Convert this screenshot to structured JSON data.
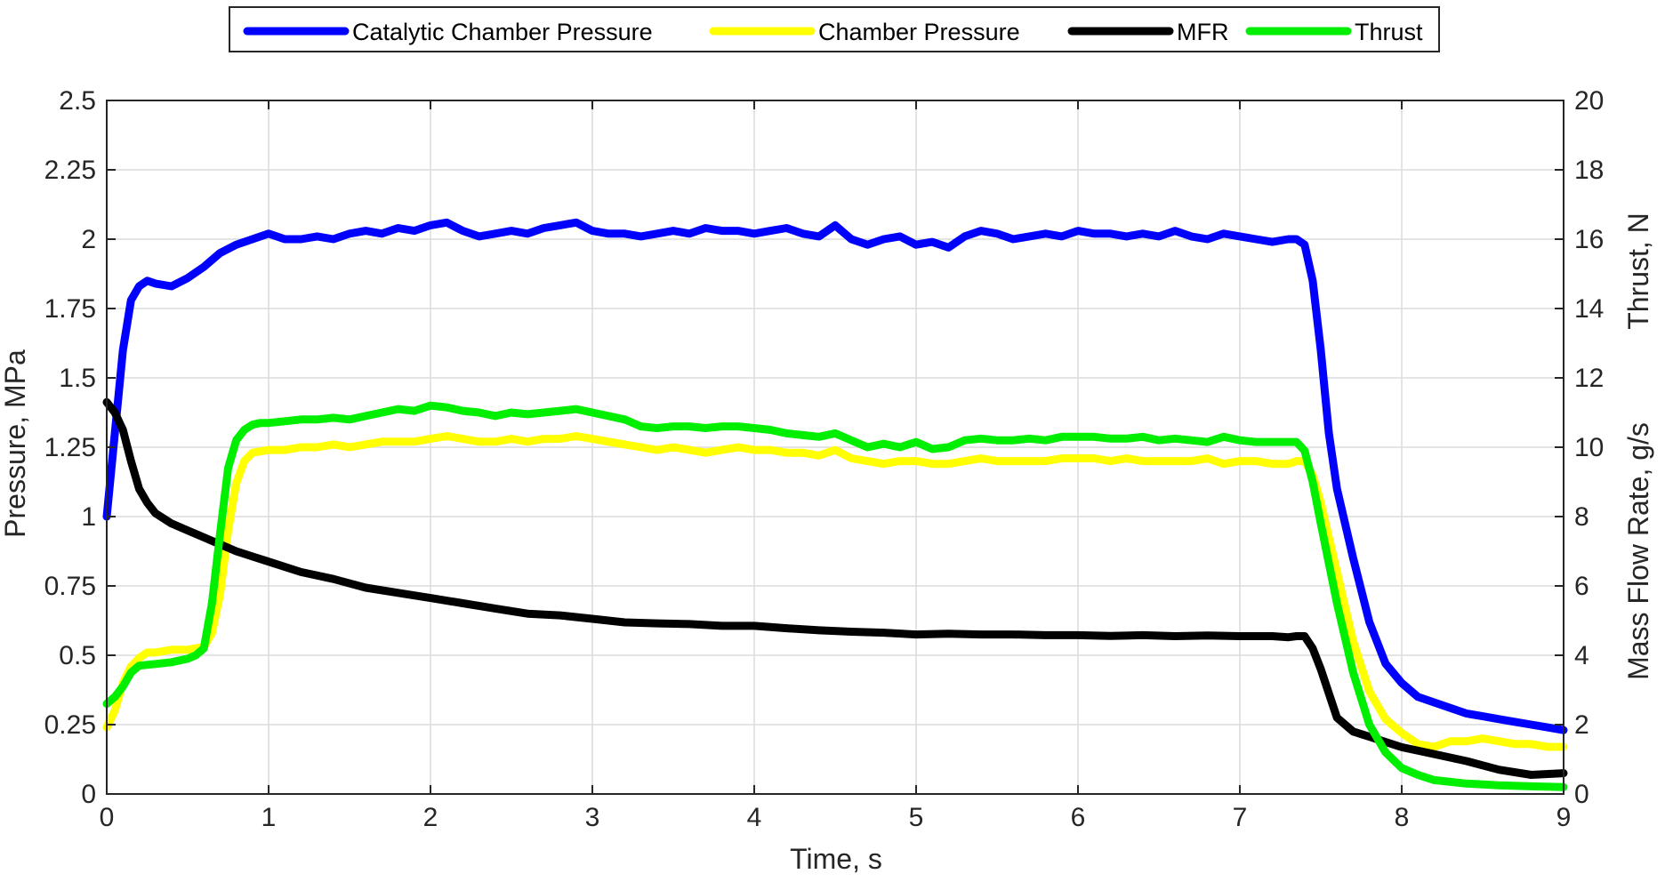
{
  "chart_data": {
    "type": "line",
    "title": "",
    "xlabel": "Time, s",
    "ylabel_left": "Pressure, MPa",
    "ylabel_right_top": "Thrust, N",
    "ylabel_right_bottom": "Mass Flow Rate, g/s",
    "xlim": [
      0,
      9
    ],
    "ylim_left": [
      0,
      2.5
    ],
    "ylim_right": [
      0,
      20
    ],
    "grid": true,
    "legend_position": "top",
    "x_ticks": [
      0,
      1,
      2,
      3,
      4,
      5,
      6,
      7,
      8,
      9
    ],
    "x_tick_labels": [
      "0",
      "1",
      "2",
      "3",
      "4",
      "5",
      "6",
      "7",
      "8",
      "9"
    ],
    "y_left_ticks": [
      0,
      0.25,
      0.5,
      0.75,
      1,
      1.25,
      1.5,
      1.75,
      2,
      2.25,
      2.5
    ],
    "y_left_tick_labels": [
      "0",
      "0.25",
      "0.5",
      "0.75",
      "1",
      "1.25",
      "1.5",
      "1.75",
      "2",
      "2.25",
      "2.5"
    ],
    "y_right_ticks": [
      0,
      2,
      4,
      6,
      8,
      10,
      12,
      14,
      16,
      18,
      20
    ],
    "y_right_tick_labels": [
      "0",
      "2",
      "4",
      "6",
      "8",
      "10",
      "12",
      "14",
      "16",
      "18",
      "20"
    ],
    "series": [
      {
        "name": "Catalytic Chamber Pressure",
        "color": "#0000ff",
        "axis": "left",
        "x": [
          0,
          0.05,
          0.1,
          0.15,
          0.2,
          0.25,
          0.3,
          0.4,
          0.5,
          0.6,
          0.7,
          0.8,
          0.9,
          1.0,
          1.1,
          1.2,
          1.3,
          1.4,
          1.5,
          1.6,
          1.7,
          1.8,
          1.9,
          2.0,
          2.1,
          2.2,
          2.3,
          2.4,
          2.5,
          2.6,
          2.7,
          2.8,
          2.9,
          3.0,
          3.1,
          3.2,
          3.3,
          3.4,
          3.5,
          3.6,
          3.7,
          3.8,
          3.9,
          4.0,
          4.1,
          4.2,
          4.3,
          4.4,
          4.5,
          4.6,
          4.7,
          4.8,
          4.9,
          5.0,
          5.1,
          5.2,
          5.3,
          5.4,
          5.5,
          5.6,
          5.7,
          5.8,
          5.9,
          6.0,
          6.1,
          6.2,
          6.3,
          6.4,
          6.5,
          6.6,
          6.7,
          6.8,
          6.9,
          7.0,
          7.1,
          7.2,
          7.3,
          7.35,
          7.4,
          7.45,
          7.5,
          7.55,
          7.6,
          7.7,
          7.8,
          7.9,
          8.0,
          8.1,
          8.2,
          8.3,
          8.4,
          8.5,
          8.6,
          8.7,
          8.8,
          8.9,
          9.0
        ],
        "values": [
          1.0,
          1.3,
          1.6,
          1.78,
          1.83,
          1.85,
          1.84,
          1.83,
          1.86,
          1.9,
          1.95,
          1.98,
          2.0,
          2.02,
          2.0,
          2.0,
          2.01,
          2.0,
          2.02,
          2.03,
          2.02,
          2.04,
          2.03,
          2.05,
          2.06,
          2.03,
          2.01,
          2.02,
          2.03,
          2.02,
          2.04,
          2.05,
          2.06,
          2.03,
          2.02,
          2.02,
          2.01,
          2.02,
          2.03,
          2.02,
          2.04,
          2.03,
          2.03,
          2.02,
          2.03,
          2.04,
          2.02,
          2.01,
          2.05,
          2.0,
          1.98,
          2.0,
          2.01,
          1.98,
          1.99,
          1.97,
          2.01,
          2.03,
          2.02,
          2.0,
          2.01,
          2.02,
          2.01,
          2.03,
          2.02,
          2.02,
          2.01,
          2.02,
          2.01,
          2.03,
          2.01,
          2.0,
          2.02,
          2.01,
          2.0,
          1.99,
          2.0,
          2.0,
          1.98,
          1.85,
          1.6,
          1.3,
          1.1,
          0.85,
          0.62,
          0.47,
          0.4,
          0.35,
          0.33,
          0.31,
          0.29,
          0.28,
          0.27,
          0.26,
          0.25,
          0.24,
          0.23
        ]
      },
      {
        "name": "Chamber Pressure",
        "color": "#ffff00",
        "axis": "left",
        "x": [
          0,
          0.05,
          0.1,
          0.15,
          0.2,
          0.25,
          0.3,
          0.4,
          0.5,
          0.6,
          0.65,
          0.7,
          0.75,
          0.8,
          0.85,
          0.9,
          1.0,
          1.1,
          1.2,
          1.3,
          1.4,
          1.5,
          1.6,
          1.7,
          1.8,
          1.9,
          2.0,
          2.1,
          2.2,
          2.3,
          2.4,
          2.5,
          2.6,
          2.7,
          2.8,
          2.9,
          3.0,
          3.1,
          3.2,
          3.3,
          3.4,
          3.5,
          3.6,
          3.7,
          3.8,
          3.9,
          4.0,
          4.1,
          4.2,
          4.3,
          4.4,
          4.5,
          4.6,
          4.7,
          4.8,
          4.9,
          5.0,
          5.1,
          5.2,
          5.3,
          5.4,
          5.5,
          5.6,
          5.7,
          5.8,
          5.9,
          6.0,
          6.1,
          6.2,
          6.3,
          6.4,
          6.5,
          6.6,
          6.7,
          6.8,
          6.9,
          7.0,
          7.1,
          7.2,
          7.3,
          7.35,
          7.4,
          7.45,
          7.5,
          7.6,
          7.7,
          7.8,
          7.9,
          8.0,
          8.1,
          8.2,
          8.3,
          8.4,
          8.5,
          8.6,
          8.7,
          8.8,
          8.9,
          9.0
        ],
        "values": [
          0.24,
          0.3,
          0.4,
          0.46,
          0.49,
          0.51,
          0.51,
          0.52,
          0.52,
          0.53,
          0.58,
          0.72,
          0.95,
          1.12,
          1.2,
          1.23,
          1.24,
          1.24,
          1.25,
          1.25,
          1.26,
          1.25,
          1.26,
          1.27,
          1.27,
          1.27,
          1.28,
          1.29,
          1.28,
          1.27,
          1.27,
          1.28,
          1.27,
          1.28,
          1.28,
          1.29,
          1.28,
          1.27,
          1.26,
          1.25,
          1.24,
          1.25,
          1.24,
          1.23,
          1.24,
          1.25,
          1.24,
          1.24,
          1.23,
          1.23,
          1.22,
          1.24,
          1.21,
          1.2,
          1.19,
          1.2,
          1.2,
          1.19,
          1.19,
          1.2,
          1.21,
          1.2,
          1.2,
          1.2,
          1.2,
          1.21,
          1.21,
          1.21,
          1.2,
          1.21,
          1.2,
          1.2,
          1.2,
          1.2,
          1.21,
          1.19,
          1.2,
          1.2,
          1.19,
          1.19,
          1.2,
          1.2,
          1.15,
          1.05,
          0.8,
          0.55,
          0.37,
          0.27,
          0.22,
          0.18,
          0.17,
          0.19,
          0.19,
          0.2,
          0.19,
          0.18,
          0.18,
          0.17,
          0.17
        ]
      },
      {
        "name": "MFR",
        "color": "#000000",
        "axis": "right",
        "x": [
          0,
          0.05,
          0.1,
          0.15,
          0.2,
          0.25,
          0.3,
          0.4,
          0.5,
          0.6,
          0.7,
          0.8,
          0.9,
          1.0,
          1.2,
          1.4,
          1.6,
          1.8,
          2.0,
          2.2,
          2.4,
          2.6,
          2.8,
          3.0,
          3.2,
          3.4,
          3.6,
          3.8,
          4.0,
          4.2,
          4.4,
          4.6,
          4.8,
          5.0,
          5.2,
          5.4,
          5.6,
          5.8,
          6.0,
          6.2,
          6.4,
          6.6,
          6.8,
          7.0,
          7.2,
          7.3,
          7.35,
          7.4,
          7.45,
          7.5,
          7.55,
          7.6,
          7.7,
          7.8,
          7.9,
          8.0,
          8.2,
          8.4,
          8.6,
          8.8,
          9.0
        ],
        "values": [
          11.3,
          11.0,
          10.5,
          9.6,
          8.8,
          8.4,
          8.1,
          7.8,
          7.6,
          7.4,
          7.2,
          7.0,
          6.85,
          6.7,
          6.4,
          6.2,
          5.95,
          5.8,
          5.65,
          5.5,
          5.35,
          5.2,
          5.15,
          5.05,
          4.95,
          4.92,
          4.9,
          4.85,
          4.85,
          4.78,
          4.72,
          4.68,
          4.65,
          4.6,
          4.62,
          4.6,
          4.6,
          4.58,
          4.58,
          4.56,
          4.58,
          4.55,
          4.57,
          4.55,
          4.55,
          4.52,
          4.55,
          4.55,
          4.2,
          3.6,
          2.9,
          2.2,
          1.8,
          1.65,
          1.5,
          1.35,
          1.15,
          0.95,
          0.7,
          0.55,
          0.6
        ]
      },
      {
        "name": "Thrust",
        "color": "#00ee00",
        "axis": "right",
        "x": [
          0,
          0.05,
          0.1,
          0.15,
          0.2,
          0.3,
          0.4,
          0.5,
          0.55,
          0.6,
          0.65,
          0.7,
          0.75,
          0.8,
          0.85,
          0.9,
          0.95,
          1.0,
          1.1,
          1.2,
          1.3,
          1.4,
          1.5,
          1.6,
          1.7,
          1.8,
          1.9,
          2.0,
          2.1,
          2.2,
          2.3,
          2.4,
          2.5,
          2.6,
          2.7,
          2.8,
          2.9,
          3.0,
          3.1,
          3.2,
          3.3,
          3.4,
          3.5,
          3.6,
          3.7,
          3.8,
          3.9,
          4.0,
          4.1,
          4.2,
          4.3,
          4.4,
          4.5,
          4.6,
          4.7,
          4.8,
          4.9,
          5.0,
          5.1,
          5.2,
          5.3,
          5.4,
          5.5,
          5.6,
          5.7,
          5.8,
          5.9,
          6.0,
          6.1,
          6.2,
          6.3,
          6.4,
          6.5,
          6.6,
          6.7,
          6.8,
          6.9,
          7.0,
          7.1,
          7.2,
          7.3,
          7.35,
          7.4,
          7.45,
          7.5,
          7.6,
          7.7,
          7.8,
          7.9,
          8.0,
          8.1,
          8.2,
          8.4,
          8.6,
          8.8,
          9.0
        ],
        "values": [
          2.6,
          2.8,
          3.1,
          3.5,
          3.7,
          3.75,
          3.8,
          3.9,
          4.0,
          4.2,
          5.5,
          7.5,
          9.4,
          10.2,
          10.5,
          10.65,
          10.7,
          10.7,
          10.75,
          10.8,
          10.8,
          10.85,
          10.8,
          10.9,
          11.0,
          11.1,
          11.05,
          11.2,
          11.15,
          11.05,
          11.0,
          10.9,
          11.0,
          10.95,
          11.0,
          11.05,
          11.1,
          11.0,
          10.9,
          10.8,
          10.6,
          10.55,
          10.6,
          10.6,
          10.55,
          10.6,
          10.6,
          10.55,
          10.5,
          10.4,
          10.35,
          10.3,
          10.4,
          10.2,
          10.0,
          10.1,
          10.0,
          10.15,
          9.95,
          10.0,
          10.2,
          10.25,
          10.2,
          10.2,
          10.25,
          10.2,
          10.3,
          10.3,
          10.3,
          10.25,
          10.25,
          10.3,
          10.2,
          10.25,
          10.2,
          10.15,
          10.3,
          10.2,
          10.15,
          10.15,
          10.15,
          10.15,
          9.9,
          9.0,
          7.8,
          5.5,
          3.5,
          2.0,
          1.2,
          0.75,
          0.55,
          0.4,
          0.3,
          0.25,
          0.22,
          0.2
        ]
      }
    ]
  }
}
